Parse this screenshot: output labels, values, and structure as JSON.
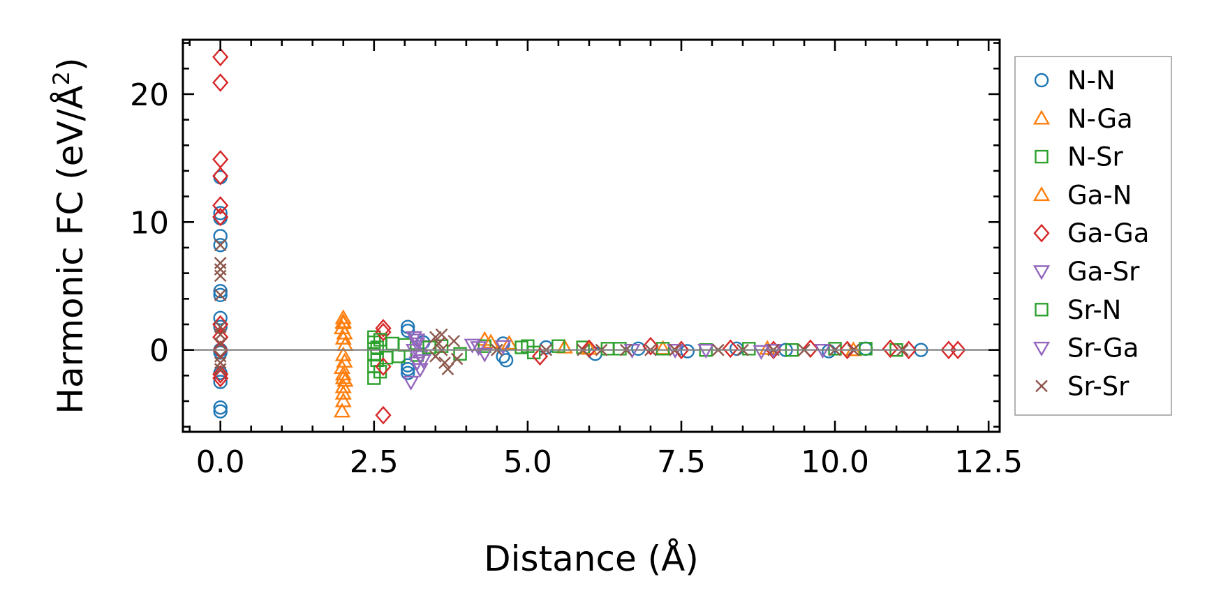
{
  "chart_data": {
    "type": "scatter",
    "title": "",
    "xlabel": "Distance (Å)",
    "ylabel": "Harmonic FC (eV/Å²)",
    "ylabel_main": "Harmonic FC (eV/Å",
    "ylabel_sup": "2",
    "ylabel_close": ")",
    "xlim": [
      -0.61,
      12.68
    ],
    "ylim": [
      -6.4,
      24.25
    ],
    "xticks": [
      0.0,
      2.5,
      5.0,
      7.5,
      10.0,
      12.5
    ],
    "xtick_labels": [
      "0.0",
      "2.5",
      "5.0",
      "7.5",
      "10.0",
      "12.5"
    ],
    "yticks": [
      0,
      10,
      20
    ],
    "ytick_labels": [
      "0",
      "10",
      "20"
    ],
    "x_minor_step": 0.5,
    "y_minor_step": 2,
    "grid": false,
    "zero_line": true,
    "legend_position": "right-outside",
    "series": [
      {
        "name": "N-N",
        "marker": "circle",
        "color": "#1f77b4",
        "points": [
          [
            0,
            13.5
          ],
          [
            0,
            10.7
          ],
          [
            0,
            10.3
          ],
          [
            0,
            8.9
          ],
          [
            0,
            8.2
          ],
          [
            0,
            4.6
          ],
          [
            0,
            4.3
          ],
          [
            0,
            2.5
          ],
          [
            0,
            1.8
          ],
          [
            0,
            0
          ],
          [
            0,
            -0.2
          ],
          [
            0,
            -1.8
          ],
          [
            0,
            -2.5
          ],
          [
            0,
            -4.5
          ],
          [
            0,
            -4.8
          ],
          [
            3.05,
            1.8
          ],
          [
            3.05,
            1.5
          ],
          [
            3.05,
            -1.2
          ],
          [
            3.05,
            -1.5
          ],
          [
            3.05,
            -1.8
          ],
          [
            3.3,
            0.6
          ],
          [
            4.6,
            0.5
          ],
          [
            4.6,
            -0.5
          ],
          [
            4.65,
            -0.8
          ],
          [
            5.3,
            0.2
          ],
          [
            6.1,
            -0.3
          ],
          [
            6.8,
            0.1
          ],
          [
            7.6,
            -0.1
          ],
          [
            8.4,
            0.1
          ],
          [
            9.2,
            0
          ],
          [
            9.9,
            -0.1
          ],
          [
            10.5,
            0.1
          ],
          [
            11.4,
            0
          ]
        ]
      },
      {
        "name": "N-Ga",
        "marker": "triangle-up",
        "color": "#ff7f0e",
        "points": [
          [
            2.0,
            2.5
          ],
          [
            2.0,
            2.1
          ],
          [
            1.98,
            1.7
          ],
          [
            2.02,
            1.3
          ],
          [
            2.0,
            0.9
          ],
          [
            2.03,
            0.4
          ],
          [
            2.0,
            -0.4
          ],
          [
            2.02,
            -0.9
          ],
          [
            1.98,
            -1.4
          ],
          [
            2.0,
            -1.9
          ],
          [
            2.03,
            -2.4
          ],
          [
            2.0,
            -2.9
          ],
          [
            2.0,
            -3.4
          ],
          [
            2.0,
            -4.0
          ],
          [
            1.98,
            -4.8
          ],
          [
            4.3,
            0.8
          ],
          [
            4.7,
            0.5
          ],
          [
            5.6,
            0.2
          ],
          [
            7.2,
            0.1
          ],
          [
            8.9,
            0.1
          ],
          [
            10.3,
            0
          ]
        ]
      },
      {
        "name": "N-Sr",
        "marker": "square",
        "color": "#2ca02c",
        "points": [
          [
            2.5,
            1.0
          ],
          [
            2.5,
            0.6
          ],
          [
            2.55,
            0.2
          ],
          [
            2.5,
            -0.3
          ],
          [
            2.55,
            -0.8
          ],
          [
            2.5,
            -1.3
          ],
          [
            2.5,
            -2.2
          ],
          [
            2.6,
            -1.7
          ],
          [
            2.8,
            0.5
          ],
          [
            2.9,
            -0.5
          ],
          [
            3.0,
            0.4
          ],
          [
            3.2,
            -0.4
          ],
          [
            3.6,
            0.3
          ],
          [
            3.9,
            -0.3
          ],
          [
            4.3,
            0.3
          ],
          [
            4.9,
            0.2
          ],
          [
            5.1,
            -0.2
          ],
          [
            5.5,
            0.3
          ],
          [
            5.9,
            0.2
          ],
          [
            6.5,
            0.1
          ],
          [
            7.2,
            0.1
          ],
          [
            7.9,
            0
          ],
          [
            8.6,
            0.1
          ],
          [
            9.3,
            0
          ],
          [
            10.0,
            0.1
          ],
          [
            10.5,
            0.1
          ],
          [
            11.0,
            0
          ]
        ]
      },
      {
        "name": "Ga-N",
        "marker": "triangle-up",
        "color": "#ff7f0e",
        "points": [
          [
            2.0,
            2.2
          ],
          [
            2.0,
            -2.2
          ],
          [
            4.4,
            0.6
          ],
          [
            6.0,
            0.1
          ]
        ]
      },
      {
        "name": "Ga-Ga",
        "marker": "diamond",
        "color": "#d62728",
        "points": [
          [
            0,
            22.9
          ],
          [
            0,
            20.9
          ],
          [
            0,
            14.9
          ],
          [
            0,
            13.6
          ],
          [
            0,
            11.3
          ],
          [
            0,
            10.4
          ],
          [
            0,
            2.0
          ],
          [
            0,
            1.0
          ],
          [
            0,
            0
          ],
          [
            0,
            -1.9
          ],
          [
            0,
            -2.2
          ],
          [
            2.65,
            1.7
          ],
          [
            2.65,
            1.4
          ],
          [
            2.65,
            -1.3
          ],
          [
            2.65,
            -5.1
          ],
          [
            5.2,
            -0.5
          ],
          [
            6.0,
            0.1
          ],
          [
            7.0,
            0.3
          ],
          [
            7.5,
            0
          ],
          [
            8.3,
            0.1
          ],
          [
            9.0,
            0
          ],
          [
            9.6,
            0.1
          ],
          [
            10.2,
            0
          ],
          [
            10.9,
            0.1
          ],
          [
            11.2,
            0
          ],
          [
            11.85,
            0
          ],
          [
            12.0,
            0
          ]
        ]
      },
      {
        "name": "Ga-Sr",
        "marker": "triangle-down",
        "color": "#9467bd",
        "points": [
          [
            3.15,
            1.0
          ],
          [
            3.2,
            0.5
          ],
          [
            3.15,
            0
          ],
          [
            3.25,
            -0.5
          ],
          [
            3.2,
            -1.0
          ],
          [
            3.25,
            -1.5
          ],
          [
            3.1,
            -2.5
          ],
          [
            3.3,
            0.3
          ],
          [
            4.1,
            0.4
          ],
          [
            4.3,
            -0.3
          ],
          [
            4.6,
            0.3
          ],
          [
            6.7,
            0
          ],
          [
            7.9,
            0
          ],
          [
            8.8,
            -0.1
          ],
          [
            9.8,
            0
          ]
        ]
      },
      {
        "name": "Sr-N",
        "marker": "square",
        "color": "#2ca02c",
        "points": [
          [
            2.6,
            0.8
          ],
          [
            2.7,
            -0.6
          ],
          [
            3.4,
            0.2
          ],
          [
            5.0,
            0.3
          ],
          [
            6.3,
            0.1
          ]
        ]
      },
      {
        "name": "Sr-Ga",
        "marker": "triangle-down",
        "color": "#9467bd",
        "points": [
          [
            3.2,
            0.8
          ],
          [
            3.3,
            -0.8
          ],
          [
            4.2,
            0.2
          ],
          [
            7.4,
            0
          ],
          [
            9.0,
            0
          ]
        ]
      },
      {
        "name": "Sr-Sr",
        "marker": "x",
        "color": "#8c564b",
        "points": [
          [
            0,
            8.2
          ],
          [
            0,
            6.8
          ],
          [
            0,
            6.3
          ],
          [
            0,
            5.8
          ],
          [
            0,
            4.3
          ],
          [
            0,
            1.8
          ],
          [
            0,
            1.2
          ],
          [
            0,
            0.5
          ],
          [
            0,
            -0.5
          ],
          [
            0,
            -1.0
          ],
          [
            0,
            -1.5
          ],
          [
            3.5,
            1.0
          ],
          [
            3.55,
            0.5
          ],
          [
            3.6,
            0
          ],
          [
            3.5,
            -0.5
          ],
          [
            3.65,
            -1.0
          ],
          [
            3.7,
            -1.5
          ],
          [
            3.8,
            0.7
          ],
          [
            3.85,
            -0.7
          ],
          [
            3.6,
            1.2
          ],
          [
            4.5,
            0
          ],
          [
            5.3,
            0
          ],
          [
            5.9,
            0
          ],
          [
            6.2,
            0
          ],
          [
            6.6,
            0
          ],
          [
            7.0,
            0
          ],
          [
            7.4,
            0
          ],
          [
            8.1,
            0
          ],
          [
            8.5,
            0
          ],
          [
            9.0,
            0
          ],
          [
            9.5,
            0
          ],
          [
            10.0,
            0
          ],
          [
            10.3,
            0
          ],
          [
            11.1,
            0
          ]
        ]
      }
    ]
  }
}
